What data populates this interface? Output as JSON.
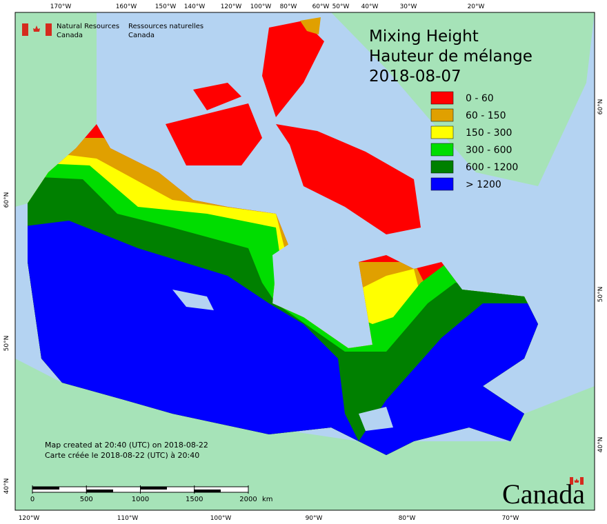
{
  "title": {
    "en": "Mixing Height",
    "fr": "Hauteur de mélange",
    "date": "2018-08-07"
  },
  "agency": {
    "en": [
      "Natural Resources",
      "Canada"
    ],
    "fr": [
      "Ressources naturelles",
      "Canada"
    ]
  },
  "legend": [
    {
      "label": "0 - 60",
      "color": "#ff0000"
    },
    {
      "label": "60 - 150",
      "color": "#e0a000"
    },
    {
      "label": "150 - 300",
      "color": "#ffff00"
    },
    {
      "label": "300 - 600",
      "color": "#00dd00"
    },
    {
      "label": "600 - 1200",
      "color": "#008000"
    },
    {
      "label": "> 1200",
      "color": "#0000ff"
    }
  ],
  "top_axis_labels": [
    "170°W",
    "160°W",
    "150°W",
    "140°W",
    "120°W",
    "100°W",
    "80°W",
    "60°W",
    "50°W",
    "40°W",
    "30°W",
    "20°W"
  ],
  "bottom_axis_labels": [
    "120°W",
    "110°W",
    "100°W",
    "90°W",
    "80°W",
    "70°W"
  ],
  "left_axis_labels": [
    "60°N",
    "50°N",
    "40°N"
  ],
  "right_axis_labels": [
    "60°N",
    "50°N",
    "40°N"
  ],
  "footer": [
    "Map created at 20:40 (UTC) on 2018-08-22",
    "Carte créée le 2018-08-22 (UTC) à 20:40"
  ],
  "scale_bar": {
    "ticks": [
      0,
      500,
      1000,
      1500,
      2000
    ],
    "unit": "km"
  },
  "wordmark": "Canada"
}
